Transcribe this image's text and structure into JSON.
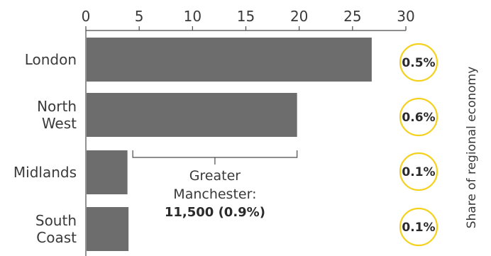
{
  "chart_data": {
    "type": "bar",
    "orientation": "horizontal",
    "categories": [
      [
        "London"
      ],
      [
        "North",
        "West"
      ],
      [
        "Midlands"
      ],
      [
        "South",
        "Coast"
      ]
    ],
    "values": [
      26.8,
      19.8,
      3.9,
      4.0
    ],
    "xlim": [
      0,
      30
    ],
    "xticks": [
      "0",
      "5",
      "10",
      "15",
      "20",
      "25",
      "30"
    ],
    "xtick_values": [
      0,
      5,
      10,
      15,
      20,
      25,
      30
    ],
    "xaxis_position": "top",
    "grid": false,
    "bar_color": "#6d6d6d",
    "share_of_regional_economy": [
      "0.5%",
      "0.6%",
      "0.1%",
      "0.1%"
    ],
    "share_circle_color": "#f5d11f",
    "side_label": "Share of regional economy",
    "annotation": {
      "text_lines": [
        "Greater",
        "Manchester:"
      ],
      "bold_line": "11,500 (0.9%)",
      "bracket_from": 4.4,
      "bracket_to": 19.8,
      "bracket_category": 2
    }
  }
}
